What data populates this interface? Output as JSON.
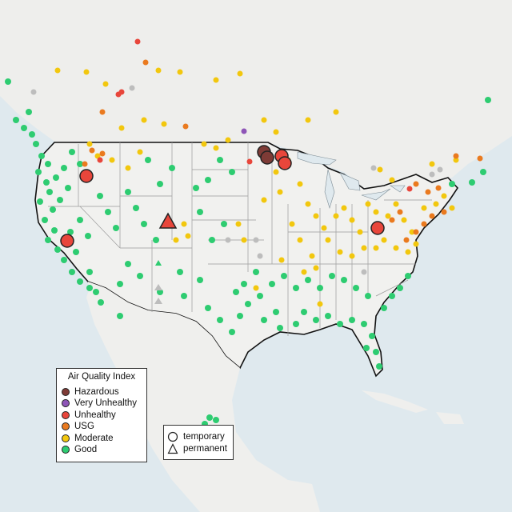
{
  "map": {
    "legend": {
      "title": "Air Quality Index",
      "categories": [
        {
          "label": "Hazardous",
          "color": "#7e3b36"
        },
        {
          "label": "Very Unhealthy",
          "color": "#8e55b7"
        },
        {
          "label": "Unhealthy",
          "color": "#e8463b"
        },
        {
          "label": "USG",
          "color": "#ea7a1f"
        },
        {
          "label": "Moderate",
          "color": "#f2c70e"
        },
        {
          "label": "Good",
          "color": "#2ecc71"
        }
      ]
    },
    "symbol_legend": {
      "items": [
        {
          "label": "temporary",
          "shape": "circle"
        },
        {
          "label": "permanent",
          "shape": "triangle"
        }
      ]
    },
    "colors": {
      "water": "#dfe9ee",
      "land": "#efefed",
      "border": "#111111",
      "state_lines": "#9a9a9a",
      "no_data": "#bdbdbd"
    }
  }
}
